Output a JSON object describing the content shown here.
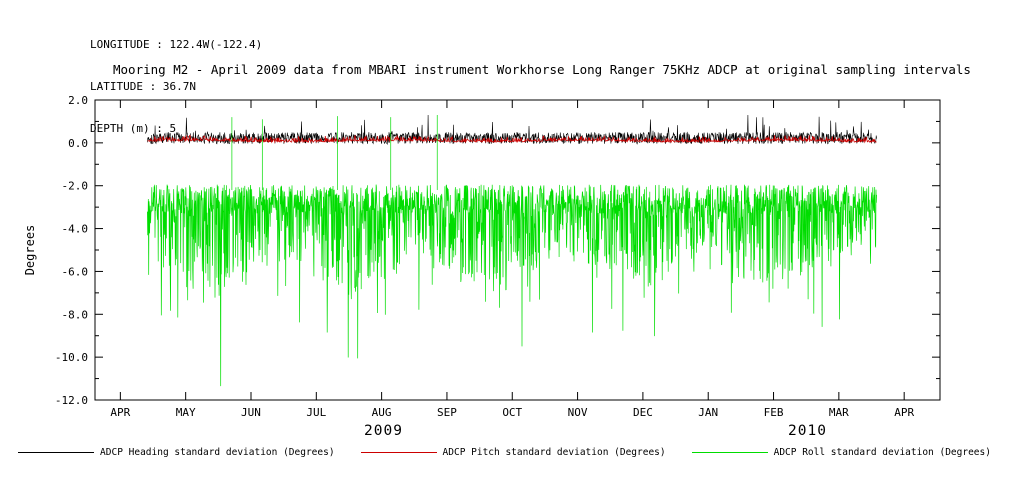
{
  "header": {
    "longitude": "LONGITUDE : 122.4W(-122.4)",
    "latitude": "LATITUDE : 36.7N",
    "depth": "DEPTH (m) : 5"
  },
  "title": "Mooring M2 - April 2009 data from MBARI instrument Workhorse Long Ranger 75KHz ADCP at original sampling intervals",
  "chart_data": {
    "type": "line",
    "title": "Mooring M2 - April 2009 data from MBARI instrument Workhorse Long Ranger 75KHz ADCP at original sampling intervals",
    "xlabel": "",
    "ylabel": "Degrees",
    "ylim": [
      -12.0,
      2.0
    ],
    "yticks": [
      2.0,
      0.0,
      -2.0,
      -4.0,
      -6.0,
      -8.0,
      -10.0,
      -12.0
    ],
    "x_months": [
      "APR",
      "MAY",
      "JUN",
      "JUL",
      "AUG",
      "SEP",
      "OCT",
      "NOV",
      "DEC",
      "JAN",
      "FEB",
      "MAR",
      "APR"
    ],
    "year_labels": [
      "2009",
      "2010"
    ],
    "grid": false,
    "legend_position": "bottom",
    "axis": {
      "first_tick_frac": 0.03,
      "tick_spacing_frac": 0.0773
    },
    "series": [
      {
        "name": "ADCP Heading standard deviation (Degrees)",
        "color": "#000000",
        "kind": "heading",
        "seed": 101,
        "points": 1700,
        "start_frac": 0.062,
        "end_frac": 0.925,
        "base": -0.05,
        "noise": 0.55,
        "spike_prob": 0.015,
        "spike_amp": 0.9,
        "approx_range": [
          -0.2,
          1.4
        ],
        "width": 0.6
      },
      {
        "name": "ADCP Pitch standard deviation (Degrees)",
        "color": "#cc0000",
        "kind": "pitch",
        "seed": 202,
        "points": 1300,
        "start_frac": 0.062,
        "end_frac": 0.925,
        "base": 0.06,
        "noise": 0.28,
        "approx_range": [
          0.05,
          0.4
        ],
        "width": 0.8
      },
      {
        "name": "ADCP Roll standard deviation (Degrees)",
        "color": "#00dd00",
        "kind": "roll",
        "seed": 303,
        "points": 2300,
        "start_frac": 0.062,
        "end_frac": 0.925,
        "base": -1.95,
        "noise": 1.35,
        "tail_prob": 0.42,
        "tail_amp": 3.4,
        "deep_prob": 0.025,
        "deep_base": 2.0,
        "deep_amp": 3.5,
        "approx_range": [
          -11.3,
          -1.9
        ],
        "upspikes": [
          {
            "frac": 0.162,
            "peak": 1.2
          },
          {
            "frac": 0.198,
            "peak": 1.1
          },
          {
            "frac": 0.287,
            "peak": 1.25
          },
          {
            "frac": 0.35,
            "peak": 1.2
          },
          {
            "frac": 0.405,
            "peak": 1.3
          }
        ],
        "width": 0.7
      }
    ]
  }
}
